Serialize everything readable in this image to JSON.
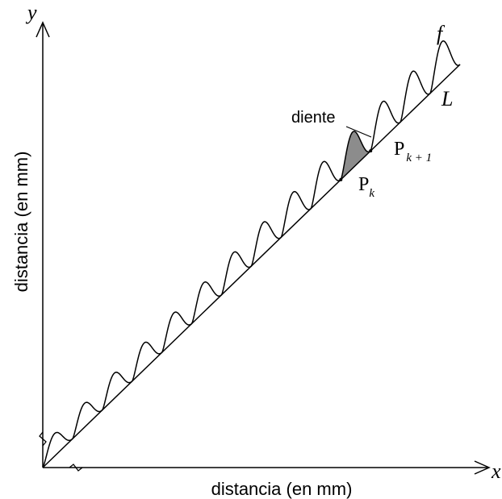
{
  "figure": {
    "x_axis_symbol": "x",
    "y_axis_symbol": "y",
    "x_axis_label": "distancia (en mm)",
    "y_axis_label": "distancia (en mm)",
    "curve_label": "f",
    "line_label": "L",
    "tooth_label": "diente",
    "point_k_base": "P",
    "point_k_sub": "k",
    "point_k1_base": "P",
    "point_k1_sub": "k + 1",
    "tooth_fill_color": "#8c8c8c",
    "stroke_color": "#000000",
    "tooth_count": 14
  }
}
